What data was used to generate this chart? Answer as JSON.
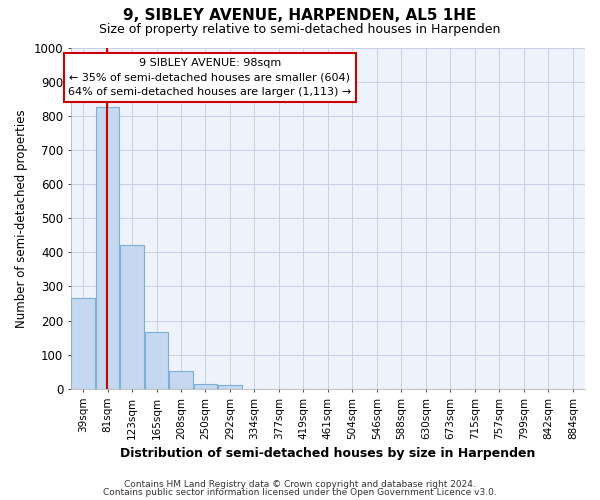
{
  "title": "9, SIBLEY AVENUE, HARPENDEN, AL5 1HE",
  "subtitle": "Size of property relative to semi-detached houses in Harpenden",
  "xlabel": "Distribution of semi-detached houses by size in Harpenden",
  "ylabel": "Number of semi-detached properties",
  "categories": [
    "39sqm",
    "81sqm",
    "123sqm",
    "165sqm",
    "208sqm",
    "250sqm",
    "292sqm",
    "334sqm",
    "377sqm",
    "419sqm",
    "461sqm",
    "504sqm",
    "546sqm",
    "588sqm",
    "630sqm",
    "673sqm",
    "715sqm",
    "757sqm",
    "799sqm",
    "842sqm",
    "884sqm"
  ],
  "values": [
    265,
    826,
    422,
    168,
    52,
    14,
    10,
    0,
    0,
    0,
    0,
    0,
    0,
    0,
    0,
    0,
    0,
    0,
    0,
    0,
    0
  ],
  "bar_color": "#c5d8f0",
  "bar_edge_color": "#7bafd4",
  "property_line_x": 1,
  "annotation_title": "9 SIBLEY AVENUE: 98sqm",
  "annotation_line1": "← 35% of semi-detached houses are smaller (604)",
  "annotation_line2": "64% of semi-detached houses are larger (1,113) →",
  "annotation_box_color": "#ffffff",
  "annotation_box_edge": "#cc0000",
  "vline_color": "#cc0000",
  "ylim": [
    0,
    1000
  ],
  "yticks": [
    0,
    100,
    200,
    300,
    400,
    500,
    600,
    700,
    800,
    900,
    1000
  ],
  "footer1": "Contains HM Land Registry data © Crown copyright and database right 2024.",
  "footer2": "Contains public sector information licensed under the Open Government Licence v3.0.",
  "bg_color": "#ffffff",
  "plot_bg_color": "#eef2fb",
  "grid_color": "#c8d0e8"
}
